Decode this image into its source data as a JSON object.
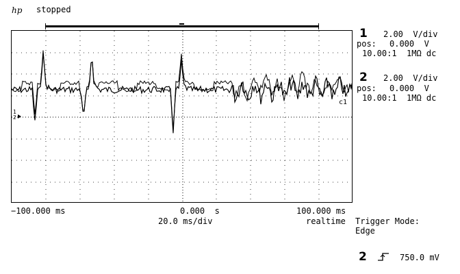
{
  "header": {
    "brand": "hp",
    "status": "stopped"
  },
  "channels": [
    {
      "number": "1",
      "scale": "2.00  V/div",
      "pos_label": "pos:",
      "pos_value": "0.000  V",
      "probe": "10.00:1  1MΩ dc"
    },
    {
      "number": "2",
      "scale": "2.00  V/div",
      "pos_label": "pos:",
      "pos_value": "0.000  V",
      "probe": "10.00:1  1MΩ dc"
    }
  ],
  "timebase": {
    "left_time": "−100.000 ms",
    "center_time": "0.000  s",
    "right_time": "100.000 ms",
    "scale": "20.0 ms/div",
    "mode": "realtime"
  },
  "trigger": {
    "mode_label": "Trigger Mode:",
    "mode_value": "Edge",
    "source": "2",
    "level": "750.0 mV"
  },
  "markers": {
    "ground": "1\n2",
    "channel_tag": "c1"
  }
}
